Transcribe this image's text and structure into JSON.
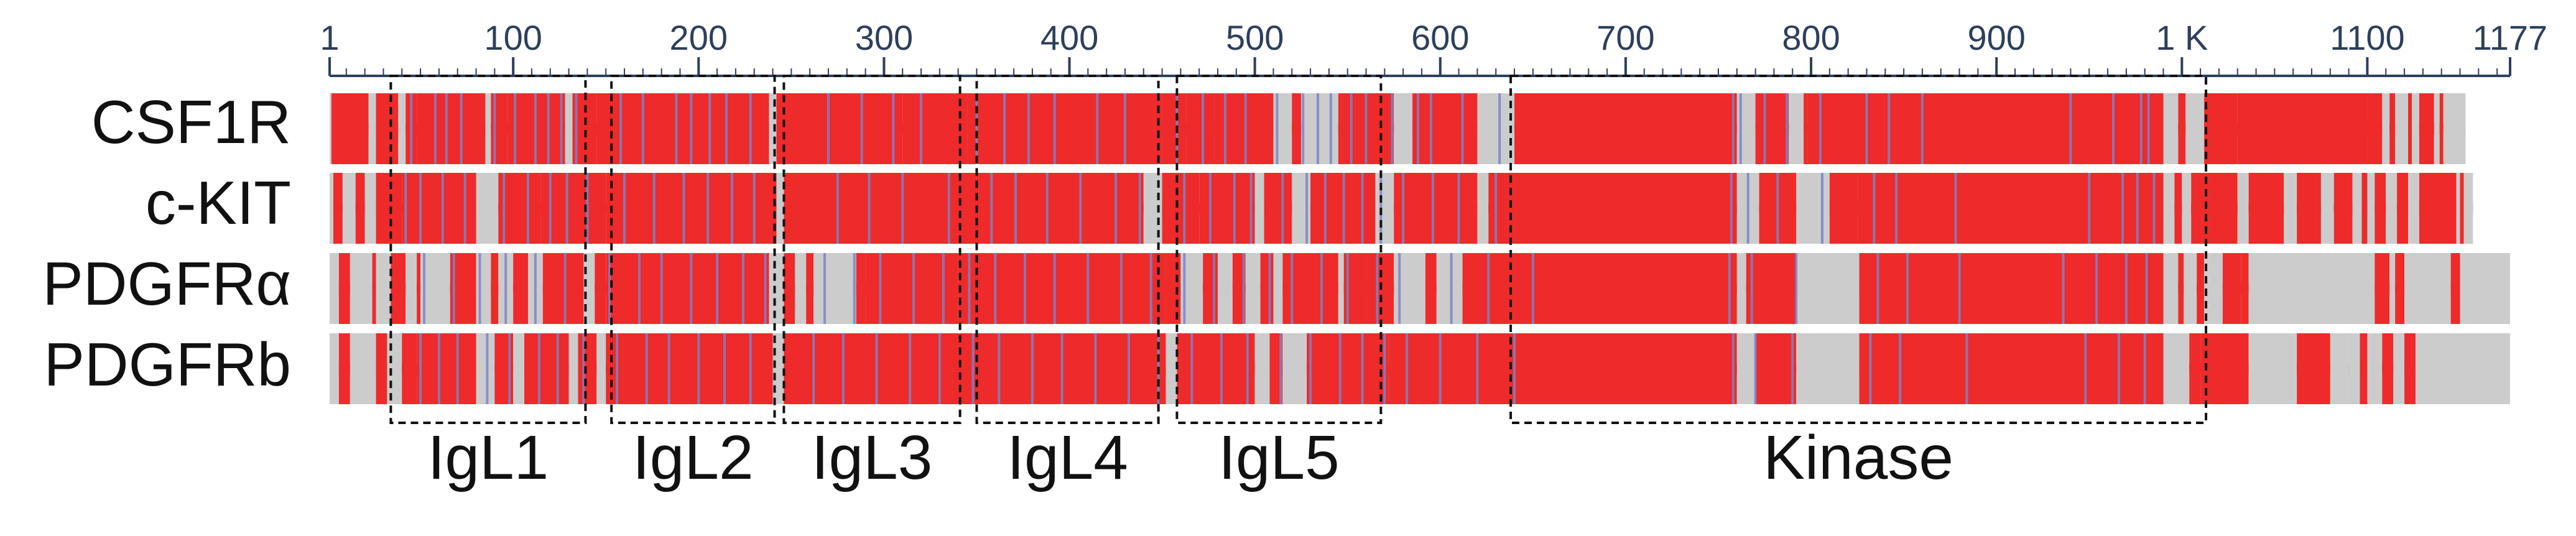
{
  "colors": {
    "conserved": "#ee2a2a",
    "gap": "#cccccc",
    "mismatch": "#7a84c8",
    "axis": "#2d3f5c",
    "box": "#111111",
    "background": "#ffffff"
  },
  "axis": {
    "min": 1,
    "max": 1177,
    "ticks": [
      {
        "value": 1,
        "label": "1"
      },
      {
        "value": 100,
        "label": "100"
      },
      {
        "value": 200,
        "label": "200"
      },
      {
        "value": 300,
        "label": "300"
      },
      {
        "value": 400,
        "label": "400"
      },
      {
        "value": 500,
        "label": "500"
      },
      {
        "value": 600,
        "label": "600"
      },
      {
        "value": 700,
        "label": "700"
      },
      {
        "value": 800,
        "label": "800"
      },
      {
        "value": 900,
        "label": "900"
      },
      {
        "value": 1000,
        "label": "1 K"
      },
      {
        "value": 1100,
        "label": "1100"
      },
      {
        "value": 1177,
        "label": "1177"
      }
    ]
  },
  "sequences": [
    {
      "name": "CSF1R",
      "segments": [
        [
          1,
          2,
          "gap"
        ],
        [
          2,
          22,
          "conserved"
        ],
        [
          22,
          26,
          "gap"
        ],
        [
          26,
          38,
          "conserved"
        ],
        [
          38,
          42,
          "gap"
        ],
        [
          42,
          48,
          "conserved"
        ],
        [
          48,
          85,
          "conserved"
        ],
        [
          85,
          88,
          "gap"
        ],
        [
          88,
          97,
          "conserved"
        ],
        [
          97,
          128,
          "conserved"
        ],
        [
          128,
          132,
          "gap"
        ],
        [
          132,
          145,
          "conserved"
        ],
        [
          145,
          238,
          "conserved"
        ],
        [
          238,
          242,
          "gap"
        ],
        [
          242,
          310,
          "conserved"
        ],
        [
          310,
          345,
          "conserved"
        ],
        [
          345,
          450,
          "conserved"
        ],
        [
          450,
          463,
          "conserved"
        ],
        [
          463,
          478,
          "conserved"
        ],
        [
          478,
          510,
          "conserved"
        ],
        [
          510,
          520,
          "gap"
        ],
        [
          520,
          525,
          "conserved"
        ],
        [
          525,
          545,
          "gap"
        ],
        [
          545,
          575,
          "conserved"
        ],
        [
          575,
          585,
          "gap"
        ],
        [
          585,
          620,
          "conserved"
        ],
        [
          620,
          640,
          "gap"
        ],
        [
          640,
          760,
          "conserved"
        ],
        [
          760,
          770,
          "gap"
        ],
        [
          770,
          788,
          "conserved"
        ],
        [
          788,
          796,
          "gap"
        ],
        [
          796,
          798,
          "conserved"
        ],
        [
          798,
          828,
          "conserved"
        ],
        [
          828,
          990,
          "conserved"
        ],
        [
          990,
          998,
          "gap"
        ],
        [
          998,
          1002,
          "conserved"
        ],
        [
          1002,
          1012,
          "gap"
        ],
        [
          1012,
          1018,
          "conserved"
        ],
        [
          1018,
          1030,
          "conserved"
        ],
        [
          1030,
          1100,
          "conserved"
        ],
        [
          1100,
          1108,
          "conserved"
        ],
        [
          1108,
          1112,
          "gap"
        ],
        [
          1112,
          1115,
          "conserved"
        ],
        [
          1115,
          1122,
          "gap"
        ],
        [
          1122,
          1124,
          "conserved"
        ],
        [
          1124,
          1128,
          "gap"
        ],
        [
          1128,
          1136,
          "conserved"
        ],
        [
          1136,
          1139,
          "gap"
        ],
        [
          1139,
          1141,
          "conserved"
        ],
        [
          1141,
          1153,
          "gap"
        ]
      ]
    },
    {
      "name": "c-KIT",
      "segments": [
        [
          1,
          3,
          "gap"
        ],
        [
          3,
          8,
          "conserved"
        ],
        [
          8,
          15,
          "gap"
        ],
        [
          15,
          20,
          "conserved"
        ],
        [
          20,
          26,
          "gap"
        ],
        [
          26,
          40,
          "conserved"
        ],
        [
          40,
          80,
          "conserved"
        ],
        [
          80,
          92,
          "gap"
        ],
        [
          92,
          115,
          "conserved"
        ],
        [
          115,
          135,
          "conserved"
        ],
        [
          135,
          150,
          "conserved"
        ],
        [
          150,
          242,
          "conserved"
        ],
        [
          242,
          246,
          "gap"
        ],
        [
          246,
          440,
          "conserved"
        ],
        [
          440,
          450,
          "gap"
        ],
        [
          450,
          470,
          "conserved"
        ],
        [
          470,
          500,
          "conserved"
        ],
        [
          500,
          505,
          "gap"
        ],
        [
          505,
          520,
          "conserved"
        ],
        [
          520,
          530,
          "gap"
        ],
        [
          530,
          565,
          "conserved"
        ],
        [
          565,
          575,
          "gap"
        ],
        [
          575,
          620,
          "conserved"
        ],
        [
          620,
          626,
          "gap"
        ],
        [
          626,
          640,
          "conserved"
        ],
        [
          640,
          760,
          "conserved"
        ],
        [
          760,
          772,
          "gap"
        ],
        [
          772,
          792,
          "conserved"
        ],
        [
          792,
          810,
          "gap"
        ],
        [
          810,
          825,
          "conserved"
        ],
        [
          825,
          990,
          "conserved"
        ],
        [
          990,
          996,
          "gap"
        ],
        [
          996,
          1000,
          "conserved"
        ],
        [
          1000,
          1005,
          "gap"
        ],
        [
          1005,
          1015,
          "conserved"
        ],
        [
          1015,
          1030,
          "conserved"
        ],
        [
          1030,
          1036,
          "gap"
        ],
        [
          1036,
          1055,
          "conserved"
        ],
        [
          1055,
          1062,
          "gap"
        ],
        [
          1062,
          1075,
          "conserved"
        ],
        [
          1075,
          1082,
          "gap"
        ],
        [
          1082,
          1092,
          "conserved"
        ],
        [
          1092,
          1097,
          "gap"
        ],
        [
          1097,
          1100,
          "conserved"
        ],
        [
          1100,
          1104,
          "gap"
        ],
        [
          1104,
          1110,
          "conserved"
        ],
        [
          1110,
          1116,
          "gap"
        ],
        [
          1116,
          1122,
          "conserved"
        ],
        [
          1122,
          1128,
          "gap"
        ],
        [
          1128,
          1148,
          "conserved"
        ],
        [
          1148,
          1150,
          "gap"
        ],
        [
          1150,
          1152,
          "conserved"
        ],
        [
          1152,
          1157,
          "gap"
        ]
      ]
    },
    {
      "name": "PDGFRα",
      "segments": [
        [
          1,
          6,
          "gap"
        ],
        [
          6,
          12,
          "conserved"
        ],
        [
          12,
          24,
          "gap"
        ],
        [
          24,
          26,
          "conserved"
        ],
        [
          26,
          34,
          "gap"
        ],
        [
          34,
          42,
          "conserved"
        ],
        [
          42,
          48,
          "gap"
        ],
        [
          48,
          50,
          "conserved"
        ],
        [
          50,
          66,
          "gap"
        ],
        [
          66,
          80,
          "conserved"
        ],
        [
          80,
          88,
          "gap"
        ],
        [
          88,
          92,
          "conserved"
        ],
        [
          92,
          100,
          "gap"
        ],
        [
          100,
          108,
          "conserved"
        ],
        [
          108,
          116,
          "gap"
        ],
        [
          116,
          138,
          "conserved"
        ],
        [
          138,
          144,
          "gap"
        ],
        [
          144,
          150,
          "conserved"
        ],
        [
          150,
          238,
          "conserved"
        ],
        [
          238,
          246,
          "gap"
        ],
        [
          246,
          252,
          "conserved"
        ],
        [
          252,
          258,
          "gap"
        ],
        [
          258,
          262,
          "conserved"
        ],
        [
          262,
          285,
          "gap"
        ],
        [
          285,
          290,
          "conserved"
        ],
        [
          290,
          340,
          "conserved"
        ],
        [
          340,
          452,
          "conserved"
        ],
        [
          452,
          460,
          "conserved"
        ],
        [
          460,
          472,
          "gap"
        ],
        [
          472,
          480,
          "conserved"
        ],
        [
          480,
          488,
          "gap"
        ],
        [
          488,
          495,
          "conserved"
        ],
        [
          495,
          503,
          "gap"
        ],
        [
          503,
          510,
          "conserved"
        ],
        [
          510,
          515,
          "gap"
        ],
        [
          515,
          545,
          "conserved"
        ],
        [
          545,
          548,
          "gap"
        ],
        [
          548,
          560,
          "conserved"
        ],
        [
          560,
          575,
          "conserved"
        ],
        [
          575,
          592,
          "gap"
        ],
        [
          592,
          598,
          "conserved"
        ],
        [
          598,
          612,
          "gap"
        ],
        [
          612,
          640,
          "conserved"
        ],
        [
          640,
          760,
          "conserved"
        ],
        [
          760,
          765,
          "gap"
        ],
        [
          765,
          775,
          "conserved"
        ],
        [
          775,
          792,
          "conserved"
        ],
        [
          792,
          826,
          "gap"
        ],
        [
          826,
          990,
          "conserved"
        ],
        [
          990,
          998,
          "gap"
        ],
        [
          998,
          1001,
          "conserved"
        ],
        [
          1001,
          1008,
          "gap"
        ],
        [
          1008,
          1012,
          "conserved"
        ],
        [
          1012,
          1022,
          "gap"
        ],
        [
          1022,
          1032,
          "conserved"
        ],
        [
          1032,
          1036,
          "conserved"
        ],
        [
          1036,
          1104,
          "gap"
        ],
        [
          1104,
          1112,
          "conserved"
        ],
        [
          1112,
          1115,
          "gap"
        ],
        [
          1115,
          1120,
          "conserved"
        ],
        [
          1120,
          1145,
          "gap"
        ],
        [
          1145,
          1150,
          "conserved"
        ],
        [
          1150,
          1177,
          "gap"
        ]
      ]
    },
    {
      "name": "PDGFRb",
      "segments": [
        [
          1,
          6,
          "gap"
        ],
        [
          6,
          12,
          "conserved"
        ],
        [
          12,
          26,
          "gap"
        ],
        [
          26,
          32,
          "conserved"
        ],
        [
          32,
          40,
          "gap"
        ],
        [
          40,
          48,
          "conserved"
        ],
        [
          48,
          56,
          "conserved"
        ],
        [
          56,
          80,
          "conserved"
        ],
        [
          80,
          90,
          "gap"
        ],
        [
          90,
          100,
          "conserved"
        ],
        [
          100,
          106,
          "gap"
        ],
        [
          106,
          130,
          "conserved"
        ],
        [
          130,
          135,
          "gap"
        ],
        [
          135,
          145,
          "conserved"
        ],
        [
          145,
          150,
          "gap"
        ],
        [
          150,
          240,
          "conserved"
        ],
        [
          240,
          246,
          "gap"
        ],
        [
          246,
          452,
          "conserved"
        ],
        [
          452,
          458,
          "gap"
        ],
        [
          458,
          500,
          "conserved"
        ],
        [
          500,
          508,
          "gap"
        ],
        [
          508,
          515,
          "conserved"
        ],
        [
          515,
          528,
          "gap"
        ],
        [
          528,
          562,
          "conserved"
        ],
        [
          562,
          572,
          "conserved"
        ],
        [
          572,
          640,
          "conserved"
        ],
        [
          640,
          760,
          "conserved"
        ],
        [
          760,
          770,
          "gap"
        ],
        [
          770,
          775,
          "conserved"
        ],
        [
          775,
          792,
          "conserved"
        ],
        [
          792,
          826,
          "gap"
        ],
        [
          826,
          990,
          "conserved"
        ],
        [
          990,
          1004,
          "gap"
        ],
        [
          1004,
          1010,
          "conserved"
        ],
        [
          1010,
          1010,
          "gap"
        ],
        [
          1010,
          1036,
          "conserved"
        ],
        [
          1036,
          1062,
          "gap"
        ],
        [
          1062,
          1080,
          "conserved"
        ],
        [
          1080,
          1090,
          "gap"
        ],
        [
          1090,
          1096,
          "gap"
        ],
        [
          1096,
          1100,
          "conserved"
        ],
        [
          1100,
          1108,
          "gap"
        ],
        [
          1108,
          1114,
          "conserved"
        ],
        [
          1114,
          1120,
          "gap"
        ],
        [
          1120,
          1126,
          "conserved"
        ],
        [
          1126,
          1177,
          "gap"
        ]
      ]
    }
  ],
  "mismatch_markers": {
    "CSF1R": [
      45,
      58,
      64,
      72,
      90,
      101,
      112,
      119,
      126,
      134,
      158,
      170,
      188,
      196,
      206,
      215,
      228,
      270,
      288,
      305,
      320,
      350,
      365,
      378,
      392,
      415,
      430,
      458,
      472,
      484,
      495,
      512,
      526,
      534,
      541,
      552,
      560,
      574,
      588,
      595,
      612,
      632,
      758,
      762,
      775,
      787,
      805,
      830,
      842,
      860,
      940,
      963,
      978,
      982
    ],
    "c-KIT": [
      42,
      50,
      62,
      74,
      95,
      108,
      120,
      129,
      140,
      160,
      176,
      192,
      205,
      218,
      230,
      275,
      292,
      310,
      335,
      358,
      371,
      388,
      406,
      425,
      438,
      462,
      476,
      489,
      498,
      515,
      528,
      538,
      548,
      558,
      568,
      580,
      596,
      610,
      630,
      757,
      766,
      782,
      806,
      834,
      846,
      878,
      950,
      968,
      976,
      985
    ],
    "PDGFRα": [
      52,
      68,
      82,
      96,
      112,
      128,
      152,
      168,
      180,
      196,
      210,
      224,
      236,
      268,
      284,
      298,
      316,
      332,
      346,
      360,
      376,
      392,
      410,
      428,
      444,
      462,
      478,
      494,
      508,
      520,
      536,
      550,
      566,
      578,
      606,
      626,
      650,
      756,
      768,
      792,
      836,
      852,
      880,
      936,
      954,
      970,
      981
    ],
    "PDGFRb": [
      50,
      60,
      70,
      86,
      98,
      114,
      124,
      138,
      156,
      172,
      184,
      200,
      214,
      228,
      262,
      278,
      296,
      314,
      330,
      348,
      362,
      380,
      396,
      414,
      432,
      448,
      466,
      482,
      496,
      514,
      530,
      546,
      558,
      570,
      582,
      600,
      620,
      640,
      758,
      770,
      790,
      832,
      848,
      884,
      948,
      966,
      980
    ]
  },
  "domains": [
    {
      "label": "IgL1",
      "start": 34,
      "end": 139
    },
    {
      "label": "IgL2",
      "start": 153,
      "end": 241
    },
    {
      "label": "IgL3",
      "start": 246,
      "end": 341
    },
    {
      "label": "IgL4",
      "start": 350,
      "end": 448
    },
    {
      "label": "IgL5",
      "start": 458,
      "end": 568
    },
    {
      "label": "Kinase",
      "start": 638,
      "end": 1013
    }
  ]
}
